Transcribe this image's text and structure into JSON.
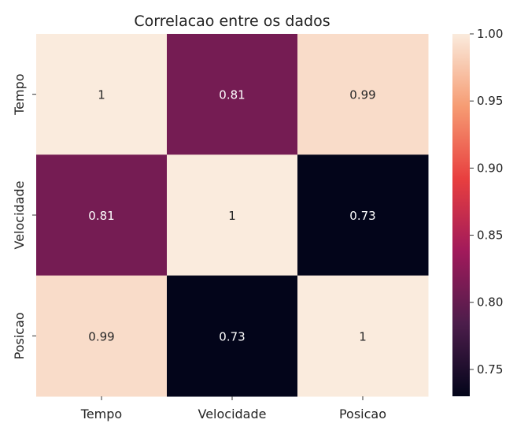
{
  "chart_data": {
    "type": "heatmap",
    "title": "Correlacao entre os dados",
    "xlabel": "",
    "ylabel": "",
    "x_categories": [
      "Tempo",
      "Velocidade",
      "Posicao"
    ],
    "y_categories": [
      "Tempo",
      "Velocidade",
      "Posicao"
    ],
    "values": [
      [
        1.0,
        0.81,
        0.99
      ],
      [
        0.81,
        1.0,
        0.73
      ],
      [
        0.99,
        0.73,
        1.0
      ]
    ],
    "annotations": [
      [
        "1",
        "0.81",
        "0.99"
      ],
      [
        "0.81",
        "1",
        "0.73"
      ],
      [
        "0.99",
        "0.73",
        "1"
      ]
    ],
    "colorbar": {
      "min": 0.73,
      "max": 1.0,
      "ticks": [
        "0.75",
        "0.80",
        "0.85",
        "0.90",
        "0.95",
        "1.00"
      ],
      "tick_values": [
        0.75,
        0.8,
        0.85,
        0.9,
        0.95,
        1.0
      ]
    },
    "colormap": "rocket",
    "colormap_stops": [
      "#03051a",
      "#4c1d4b",
      "#a11a5b",
      "#e83f3f",
      "#f69c73",
      "#faebdd"
    ],
    "legend": "right"
  }
}
